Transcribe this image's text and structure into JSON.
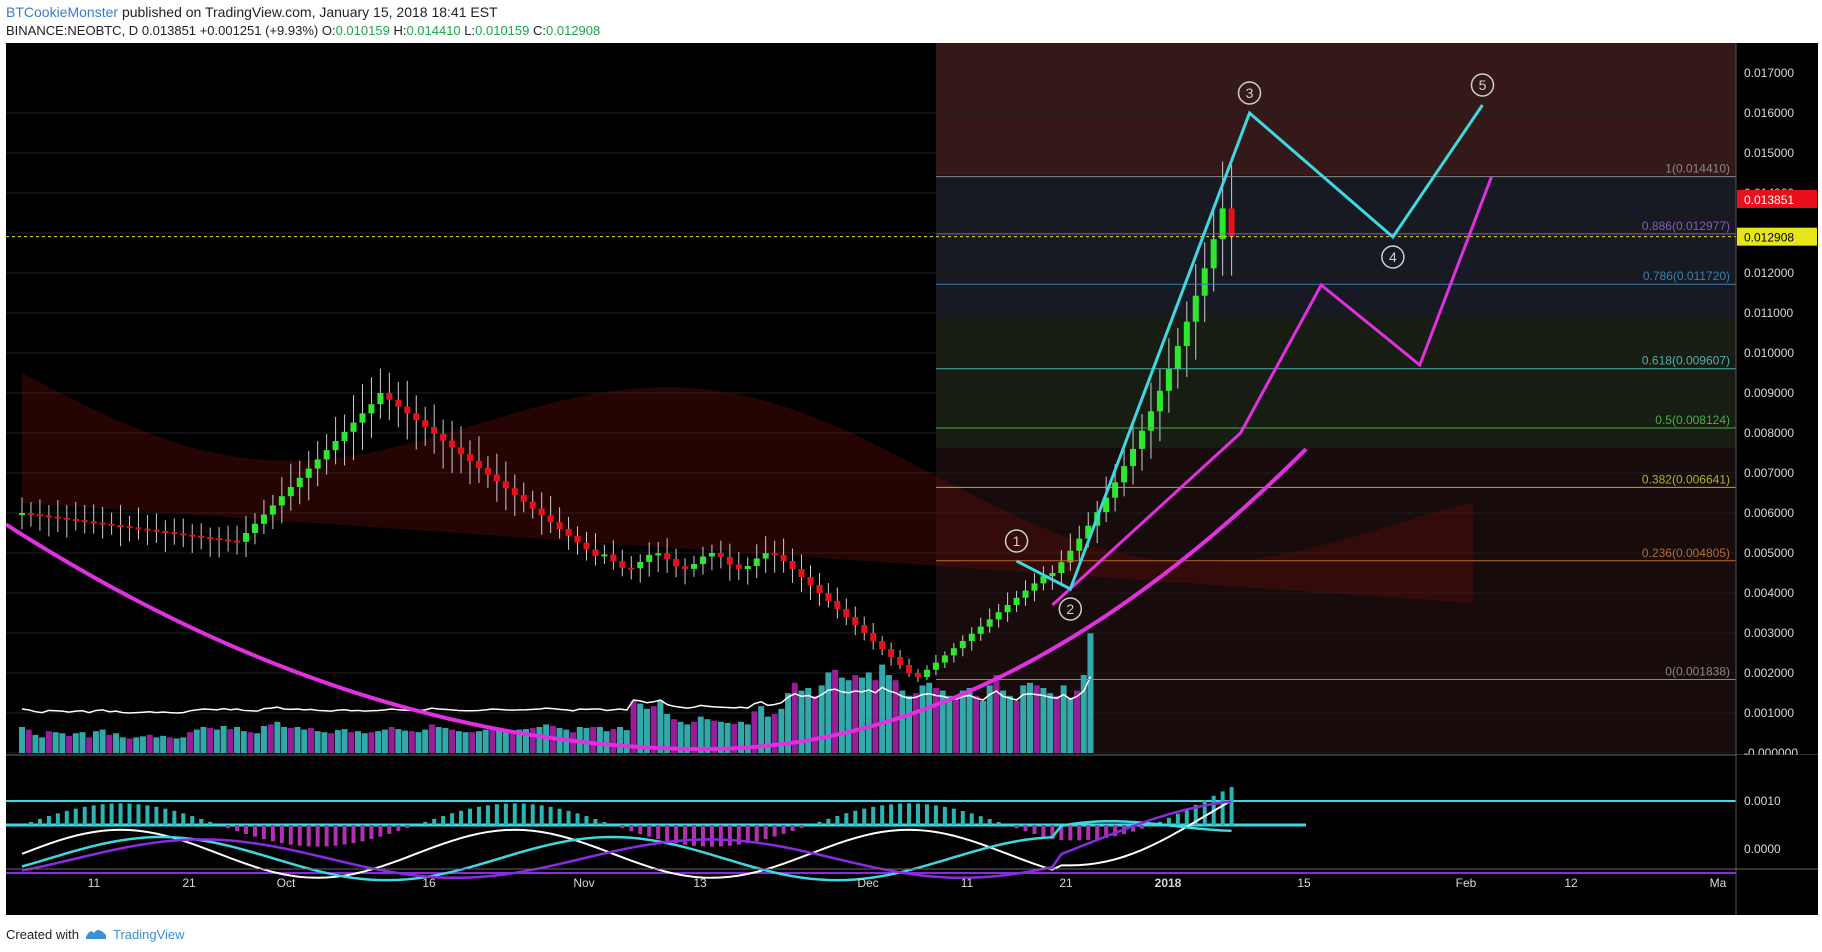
{
  "header": {
    "author": "BTCookieMonster",
    "published": "published on TradingView.com, January 15, 2018 18:41 EST",
    "symbol": "BINANCE:NEOBTC, D",
    "last": "0.013851",
    "change": "+0.001251 (+9.93%)",
    "open_label": "O:",
    "open": "0.010159",
    "high_label": "H:",
    "high": "0.014410",
    "low_label": "L:",
    "low": "0.010159",
    "close_label": "C:",
    "close": "0.012908"
  },
  "footer": {
    "created_with": "Created with",
    "brand": "TradingView"
  },
  "colors": {
    "background": "#000000",
    "bull": "#2ee830",
    "bear": "#e8101a",
    "vol_bull": "#36b6b8",
    "vol_bear": "#a61fa6",
    "wave": "#3fd7e0",
    "projection": "#e030e0",
    "price_label": "#e8101a",
    "close_label": "#e6e61a"
  },
  "chart_data": [
    {
      "type": "candlestick",
      "title": "BINANCE:NEOBTC, D",
      "y_axis_ticks": [
        "0.017000",
        "0.016000",
        "0.015000",
        "0.014000",
        "0.013000",
        "0.012000",
        "0.011000",
        "0.010000",
        "0.009000",
        "0.008000",
        "0.007000",
        "0.006000",
        "0.005000",
        "0.004000",
        "0.003000",
        "0.002000",
        "0.001000",
        "-0.000000"
      ],
      "ylim": [
        -0.0,
        0.0174
      ],
      "x_axis_ticks": [
        "11",
        "21",
        "Oct",
        "16",
        "Nov",
        "13",
        "Dec",
        "11",
        "21",
        "2018",
        "15",
        "Feb",
        "12",
        "Ma"
      ],
      "price_labels": {
        "last": "0.013851",
        "close": "0.012908"
      },
      "fibonacci": [
        {
          "label": "1(0.014410)",
          "value": 0.01441
        },
        {
          "label": "0.886(0.012977)",
          "value": 0.012977
        },
        {
          "label": "0.786(0.011720)",
          "value": 0.01172
        },
        {
          "label": "0.618(0.009607)",
          "value": 0.009607
        },
        {
          "label": "0.5(0.008124)",
          "value": 0.008124
        },
        {
          "label": "0.382(0.006641)",
          "value": 0.006641
        },
        {
          "label": "0.236(0.004805)",
          "value": 0.004805
        },
        {
          "label": "0(0.001838)",
          "value": 0.001838
        }
      ],
      "elliott_wave": [
        {
          "label": "1",
          "x": "2017-12-21",
          "y": 0.0048
        },
        {
          "label": "2",
          "x": "2017-12-27",
          "y": 0.0041
        },
        {
          "label": "3",
          "x": "2018-01-16",
          "y": 0.016
        },
        {
          "label": "4",
          "x": "2018-02-01",
          "y": 0.0129
        },
        {
          "label": "5",
          "x": "2018-02-11",
          "y": 0.0162
        }
      ],
      "projection": [
        {
          "x": "2017-12-25",
          "y": 0.0037
        },
        {
          "x": "2018-01-15",
          "y": 0.008
        },
        {
          "x": "2018-01-24",
          "y": 0.0117
        },
        {
          "x": "2018-02-04",
          "y": 0.0097
        },
        {
          "x": "2018-02-12",
          "y": 0.0144
        }
      ],
      "volume_levels": [
        0.5,
        0.45,
        0.35,
        0.3,
        0.42,
        0.4,
        0.38,
        0.33,
        0.38,
        0.4,
        0.3,
        0.42,
        0.45,
        0.35,
        0.38,
        0.3,
        0.28,
        0.3,
        0.32,
        0.35,
        0.3,
        0.33,
        0.3,
        0.28,
        0.3,
        0.4,
        0.45,
        0.5,
        0.48,
        0.45,
        0.52,
        0.46,
        0.5,
        0.42,
        0.4,
        0.38,
        0.52,
        0.55,
        0.6,
        0.5,
        0.48,
        0.5,
        0.45,
        0.48,
        0.42,
        0.4,
        0.38,
        0.44,
        0.46,
        0.4,
        0.42,
        0.38,
        0.4,
        0.42,
        0.45,
        0.5,
        0.46,
        0.43,
        0.42,
        0.4,
        0.45,
        0.55,
        0.5,
        0.48,
        0.45,
        0.42,
        0.4,
        0.4,
        0.42,
        0.45,
        0.5,
        0.48,
        0.45,
        0.44,
        0.45,
        0.46,
        0.48,
        0.5,
        0.55,
        0.52,
        0.48,
        0.45,
        0.4,
        0.5,
        0.48,
        0.5,
        0.5,
        0.42,
        0.46,
        0.5,
        0.44,
        1.0,
        0.95,
        0.85,
        0.9,
        1.0,
        0.75,
        0.65,
        0.6,
        0.55,
        0.6,
        0.7,
        0.65,
        0.62,
        0.6,
        0.58,
        0.56,
        0.6,
        0.55,
        0.8,
        0.9,
        0.7,
        0.75,
        0.85,
        1.15,
        1.35,
        1.2,
        1.25,
        1.1,
        1.3,
        1.55,
        1.6,
        1.45,
        1.4,
        1.5,
        1.45,
        1.55,
        1.4,
        1.7,
        1.5,
        1.4,
        1.2,
        1.1,
        1.15,
        1.3,
        1.35,
        1.25,
        1.2,
        1.1,
        1.05,
        1.2,
        1.25,
        1.1,
        1.0,
        1.3,
        1.5,
        1.2,
        1.1,
        1.0,
        1.3,
        1.35,
        1.3,
        1.25,
        1.15,
        1.1,
        1.3,
        1.05,
        1.2,
        1.5,
        2.3
      ]
    },
    {
      "type": "line",
      "title": "",
      "y_axis_ticks": [
        "0.0010",
        "0.0000"
      ],
      "series": []
    }
  ]
}
